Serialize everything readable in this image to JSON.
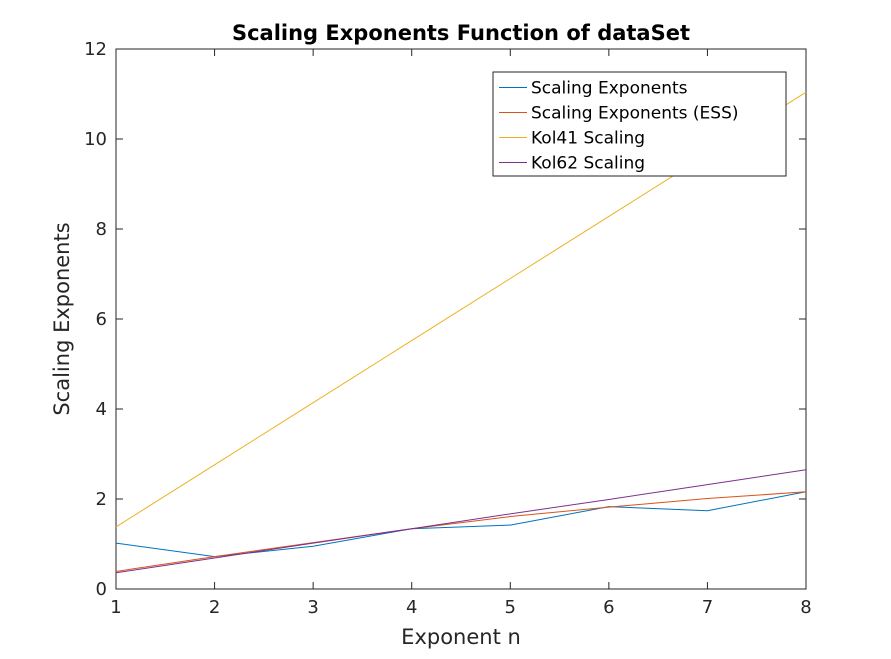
{
  "chart_data": {
    "type": "line",
    "title": "Scaling Exponents Function of dataSet",
    "xlabel": "Exponent n",
    "ylabel": "Scaling Exponents",
    "xlim": [
      1,
      8
    ],
    "ylim": [
      0,
      12
    ],
    "xticks": [
      "1",
      "2",
      "3",
      "4",
      "5",
      "6",
      "7",
      "8"
    ],
    "yticks": [
      "0",
      "2",
      "4",
      "6",
      "8",
      "10",
      "12"
    ],
    "grid": false,
    "legend_position": "top-right",
    "x": [
      1,
      2,
      3,
      4,
      5,
      6,
      7,
      8
    ],
    "series": [
      {
        "name": "Scaling Exponents",
        "color": "#0072BD",
        "values": [
          1.02,
          0.72,
          0.95,
          1.34,
          1.42,
          1.83,
          1.74,
          2.16
        ]
      },
      {
        "name": "Scaling Exponents (ESS)",
        "color": "#D95319",
        "values": [
          0.39,
          0.72,
          1.03,
          1.34,
          1.61,
          1.82,
          2.01,
          2.16
        ]
      },
      {
        "name": "Kol41 Scaling",
        "color": "#EDB120",
        "values": [
          1.38,
          2.76,
          4.14,
          5.52,
          6.9,
          8.28,
          9.66,
          11.04
        ]
      },
      {
        "name": "Kol62 Scaling",
        "color": "#7E2F8E",
        "values": [
          0.36,
          0.69,
          1.02,
          1.34,
          1.67,
          1.99,
          2.32,
          2.65
        ]
      }
    ]
  }
}
